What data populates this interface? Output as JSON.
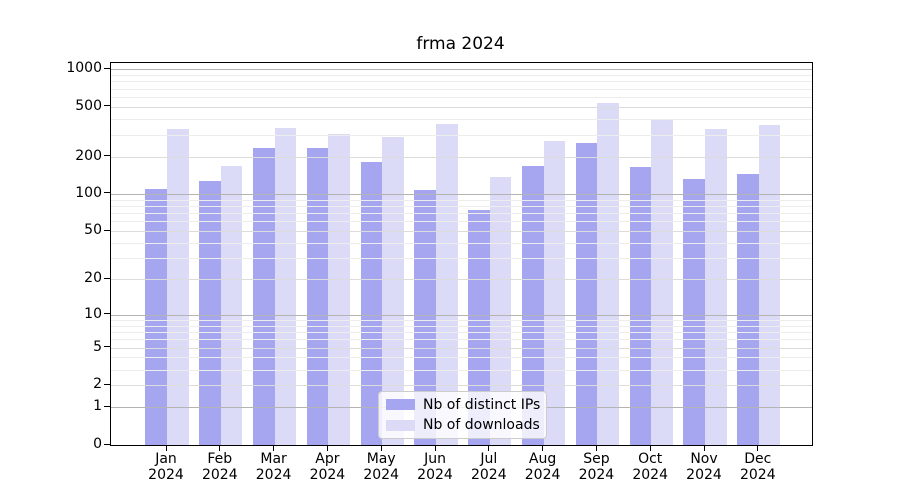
{
  "chart_data": {
    "type": "bar",
    "title": "frma 2024",
    "categories": [
      "Jan",
      "Feb",
      "Mar",
      "Apr",
      "May",
      "Jun",
      "Jul",
      "Aug",
      "Sep",
      "Oct",
      "Nov",
      "Dec"
    ],
    "x_tick_year": "2024",
    "series": [
      {
        "name": "Nb of distinct IPs",
        "color": "#a5a5f0",
        "values": [
          110,
          128,
          235,
          235,
          182,
          108,
          74,
          168,
          258,
          165,
          133,
          144
        ]
      },
      {
        "name": "Nb of downloads",
        "color": "#dbdbf8",
        "values": [
          335,
          168,
          340,
          305,
          285,
          362,
          138,
          266,
          538,
          398,
          335,
          356
        ]
      }
    ],
    "y_axis": {
      "scale": "log1p",
      "ticks": [
        0,
        1,
        2,
        5,
        10,
        20,
        50,
        100,
        200,
        500,
        1000
      ],
      "minor_ticks": [
        3,
        4,
        6,
        7,
        8,
        9,
        30,
        40,
        60,
        70,
        80,
        90,
        300,
        400,
        600,
        700,
        800,
        900
      ],
      "max": 1000
    },
    "x_axis": {
      "tick_count": 12
    },
    "legend": {
      "position": "lower center"
    },
    "grid": true,
    "colors": {
      "axis": "#000000",
      "grid_major": "#b4b4b4",
      "grid_mid": "#dcdcdc",
      "grid_minor": "#ededed",
      "background": "#ffffff"
    }
  }
}
